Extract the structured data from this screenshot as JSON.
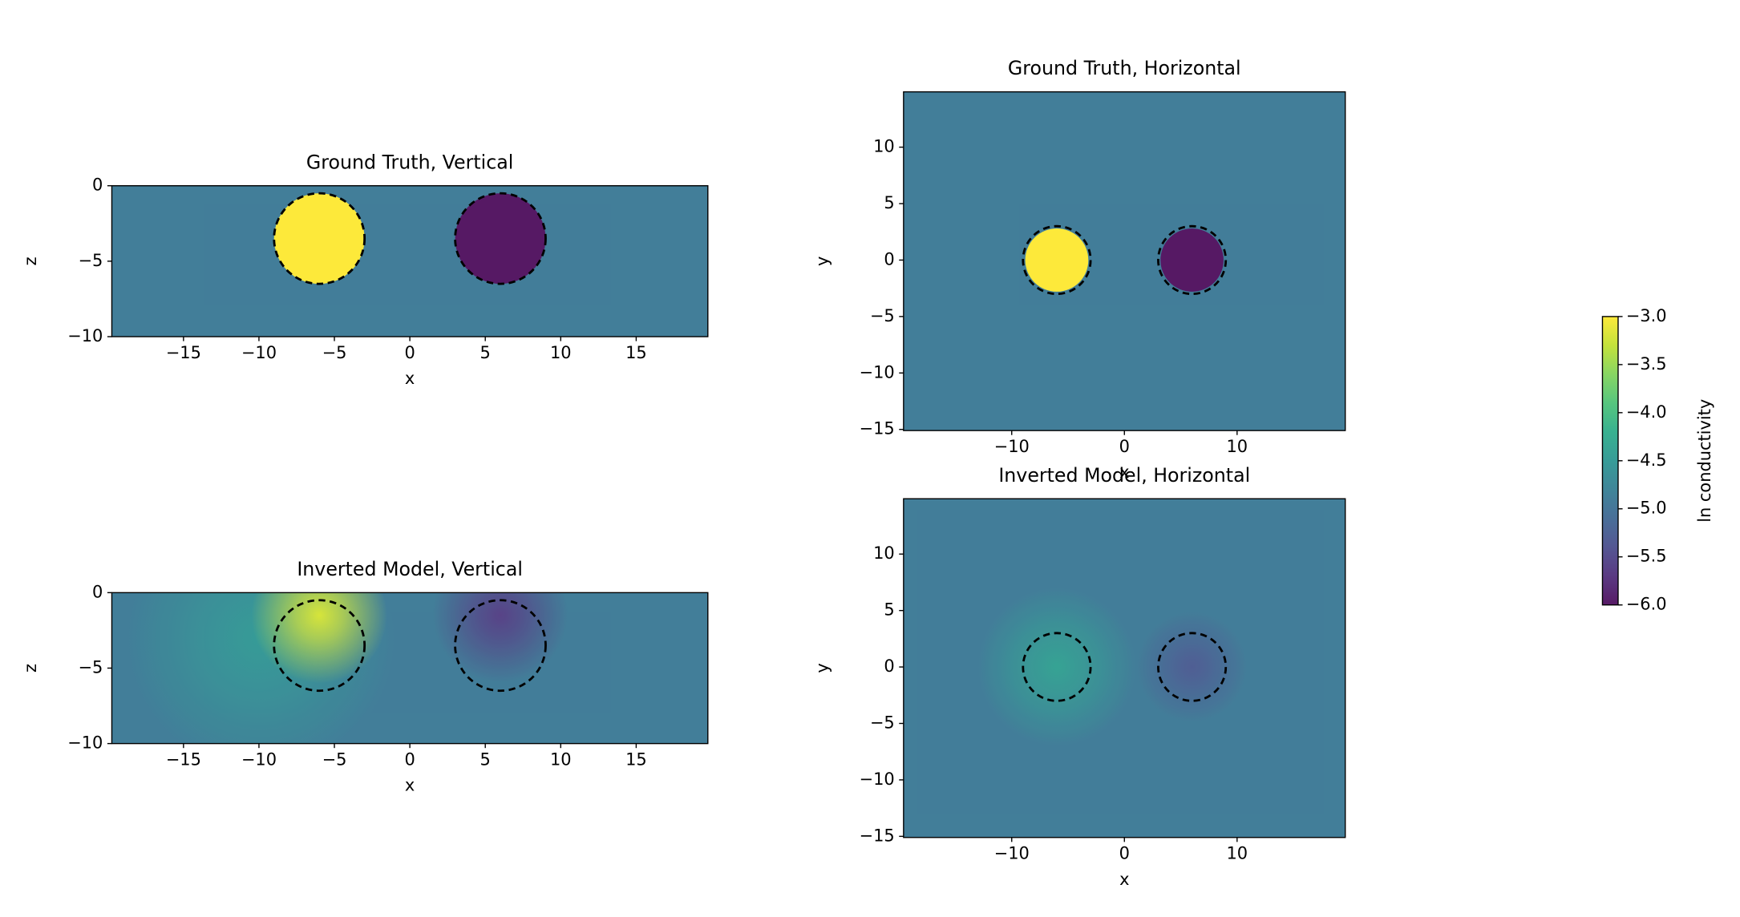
{
  "chart_data": [
    {
      "type": "image",
      "title": "Ground Truth, Vertical",
      "xlabel": "x",
      "ylabel": "z",
      "xlim": [
        -19.75,
        19.75
      ],
      "ylim": [
        -10,
        0
      ],
      "xticks": [
        {
          "value": -15,
          "label": "−15"
        },
        {
          "value": -10,
          "label": "−10"
        },
        {
          "value": -5,
          "label": "−5"
        },
        0,
        5,
        10,
        15
      ],
      "yticks": [
        0,
        {
          "value": -5,
          "label": "−5"
        },
        {
          "value": -10,
          "label": "−10"
        }
      ],
      "background": -4.9,
      "smooth": false,
      "anomalies": [
        {
          "x": -6,
          "y": -3.5,
          "radius": 3,
          "value": -3
        },
        {
          "x": 6,
          "y": -3.5,
          "radius": 3,
          "value": -6
        }
      ],
      "circles": [
        {
          "x": -6,
          "y": -3.5,
          "radius": 3
        },
        {
          "x": 6,
          "y": -3.5,
          "radius": 3
        }
      ]
    },
    {
      "type": "image",
      "title": "Ground Truth, Horizontal",
      "xlabel": "x",
      "ylabel": "y",
      "xlim": [
        -19.6,
        19.6
      ],
      "ylim": [
        -15.1,
        14.9
      ],
      "xticks": [
        {
          "value": -10,
          "label": "−10"
        },
        0,
        10
      ],
      "yticks": [
        {
          "value": -15,
          "label": "−15"
        },
        {
          "value": -10,
          "label": "−10"
        },
        {
          "value": -5,
          "label": "−5"
        },
        0,
        5,
        10
      ],
      "background": -4.9,
      "smooth": false,
      "anomalies": [
        {
          "x": -6,
          "y": 0,
          "radius": 2.8,
          "value": -3
        },
        {
          "x": 6,
          "y": 0,
          "radius": 2.8,
          "value": -6
        }
      ],
      "circles": [
        {
          "x": -6,
          "y": 0,
          "radius": 3
        },
        {
          "x": 6,
          "y": 0,
          "radius": 3
        }
      ]
    },
    {
      "type": "image",
      "title": "Inverted Model, Vertical",
      "xlabel": "x",
      "ylabel": "z",
      "xlim": [
        -19.75,
        19.75
      ],
      "ylim": [
        -10,
        0
      ],
      "xticks": [
        {
          "value": -15,
          "label": "−15"
        },
        {
          "value": -10,
          "label": "−10"
        },
        {
          "value": -5,
          "label": "−5"
        },
        0,
        5,
        10,
        15
      ],
      "yticks": [
        0,
        {
          "value": -5,
          "label": "−5"
        },
        {
          "value": -10,
          "label": "−10"
        }
      ],
      "background": -4.9,
      "smooth": true,
      "anomalies": [
        {
          "x": -10,
          "y": -3,
          "radius": 9,
          "value": -4.5
        },
        {
          "x": -6,
          "y": -1.5,
          "radius": 4.5,
          "value": -3.2
        },
        {
          "x": 6,
          "y": -1.5,
          "radius": 4.5,
          "value": -5.6
        }
      ],
      "circles": [
        {
          "x": -6,
          "y": -3.5,
          "radius": 3
        },
        {
          "x": 6,
          "y": -3.5,
          "radius": 3
        }
      ]
    },
    {
      "type": "image",
      "title": "Inverted Model, Horizontal",
      "xlabel": "x",
      "ylabel": "y",
      "xlim": [
        -19.6,
        19.6
      ],
      "ylim": [
        -15.1,
        14.9
      ],
      "xticks": [
        {
          "value": -10,
          "label": "−10"
        },
        0,
        10
      ],
      "yticks": [
        {
          "value": -15,
          "label": "−15"
        },
        {
          "value": -10,
          "label": "−10"
        },
        {
          "value": -5,
          "label": "−5"
        },
        0,
        5,
        10
      ],
      "background": -4.9,
      "smooth": true,
      "anomalies": [
        {
          "x": -6,
          "y": 0,
          "radius": 7,
          "value": -4.4
        },
        {
          "x": 6,
          "y": 0,
          "radius": 5,
          "value": -5.3
        }
      ],
      "circles": [
        {
          "x": -6,
          "y": 0,
          "radius": 3
        },
        {
          "x": 6,
          "y": 0,
          "radius": 3
        }
      ]
    }
  ],
  "colorbar": {
    "label": "ln conductivity",
    "colormap": "viridis",
    "lim": [
      -6,
      -3
    ],
    "ticks": [
      {
        "value": -3,
        "label": "−3.0"
      },
      {
        "value": -3.5,
        "label": "−3.5"
      },
      {
        "value": -4,
        "label": "−4.0"
      },
      {
        "value": -4.5,
        "label": "−4.5"
      },
      {
        "value": -5,
        "label": "−5.0"
      },
      {
        "value": -5.5,
        "label": "−5.5"
      },
      {
        "value": -6,
        "label": "−6.0"
      }
    ]
  }
}
